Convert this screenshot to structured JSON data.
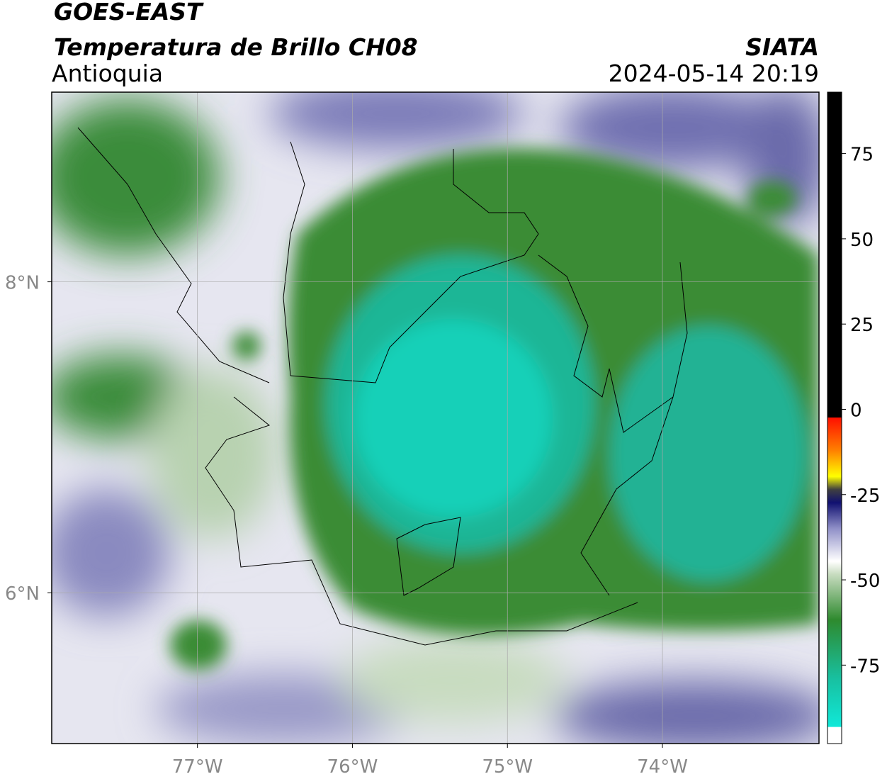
{
  "chart_data": {
    "type": "map",
    "title": "GOES-EAST",
    "subtitle": "Temperatura de Brillo CH08",
    "region": "Antioquia",
    "source": "SIATA",
    "timestamp": "2024-05-14 20:19",
    "xlim": [
      -77.94,
      -72.99
    ],
    "ylim": [
      5.03,
      9.22
    ],
    "xticks": [
      {
        "value": -77,
        "label": "77°W"
      },
      {
        "value": -76,
        "label": "76°W"
      },
      {
        "value": -75,
        "label": "75°W"
      },
      {
        "value": -74,
        "label": "74°W"
      }
    ],
    "yticks": [
      {
        "value": 6,
        "label": "6°N"
      },
      {
        "value": 8,
        "label": "8°N"
      }
    ],
    "grid": true,
    "colorbar": {
      "lim": [
        -98,
        93
      ],
      "ticks": [
        -75,
        -50,
        -25,
        0,
        25,
        50,
        75
      ]
    }
  }
}
